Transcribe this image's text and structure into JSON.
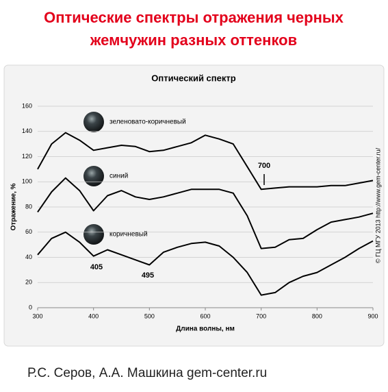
{
  "slide": {
    "title_lines": [
      "Оптические спектры отражения черных",
      "жемчужин разных оттенков"
    ],
    "footer": "Р.С. Серов, А.А. Машкина gem-center.ru"
  },
  "chart_data": {
    "type": "line",
    "title": "Оптический спектр",
    "x_label": "Длина волны, нм",
    "y_label": "Отражение, %",
    "copyright": "© ГЦ МГУ 2013 http://www.gem-center.ru/",
    "x": [
      300,
      325,
      350,
      375,
      400,
      425,
      450,
      475,
      500,
      525,
      550,
      575,
      600,
      625,
      650,
      675,
      700,
      725,
      750,
      775,
      800,
      825,
      850,
      875,
      900
    ],
    "series": [
      {
        "name": "зеленовато-коричневый",
        "color": "#000000",
        "values": [
          110,
          130,
          139,
          133,
          125,
          127,
          129,
          128,
          124,
          125,
          128,
          131,
          137,
          134,
          130,
          112,
          94,
          95,
          96,
          96,
          96,
          97,
          97,
          99,
          101
        ]
      },
      {
        "name": "синий",
        "color": "#000000",
        "values": [
          76,
          92,
          103,
          93,
          77,
          89,
          93,
          88,
          86,
          88,
          91,
          94,
          94,
          94,
          91,
          73,
          47,
          48,
          54,
          55,
          62,
          68,
          70,
          72,
          75
        ]
      },
      {
        "name": "коричневый",
        "color": "#000000",
        "values": [
          42,
          55,
          60,
          52,
          41,
          46,
          42,
          38,
          34,
          44,
          48,
          51,
          52,
          49,
          40,
          28,
          10,
          12,
          20,
          25,
          28,
          34,
          40,
          47,
          53
        ]
      }
    ],
    "annotations": [
      "700",
      "405",
      "495"
    ],
    "xlim": [
      300,
      900
    ],
    "xticks": [
      300,
      400,
      500,
      600,
      700,
      800,
      900
    ],
    "ylim": [
      0,
      160
    ],
    "yticks": [
      0,
      20,
      40,
      60,
      80,
      100,
      120,
      140,
      160
    ],
    "grid": true
  }
}
